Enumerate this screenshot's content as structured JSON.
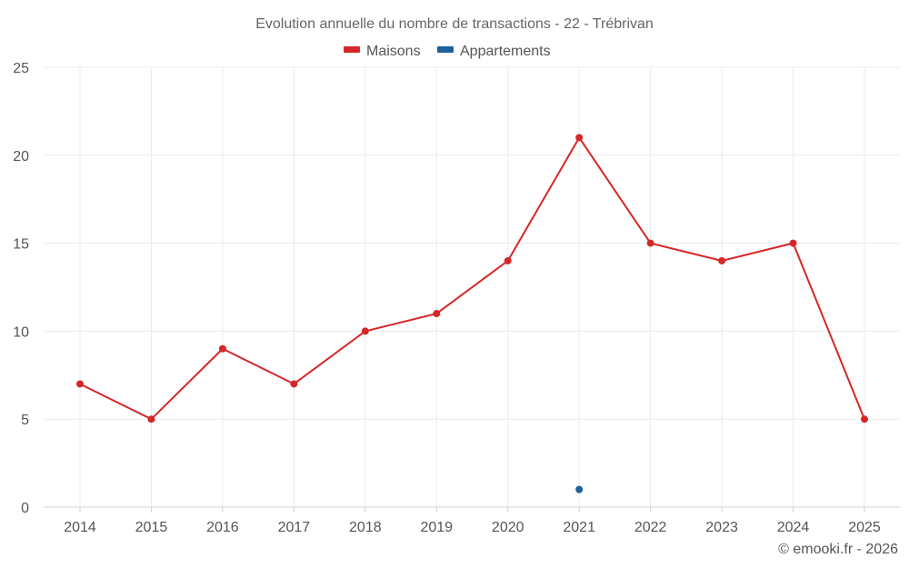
{
  "chart_data": {
    "type": "line",
    "title": "Evolution annuelle du nombre de transactions - 22 - Trébrivan",
    "categories": [
      "2014",
      "2015",
      "2016",
      "2017",
      "2018",
      "2019",
      "2020",
      "2021",
      "2022",
      "2023",
      "2024",
      "2025"
    ],
    "series": [
      {
        "name": "Maisons",
        "color": "#d62728",
        "values": [
          7,
          5,
          9,
          7,
          10,
          11,
          14,
          21,
          15,
          14,
          15,
          5
        ]
      },
      {
        "name": "Appartements",
        "color": "#1f5f9a",
        "values": [
          null,
          null,
          null,
          null,
          null,
          null,
          null,
          1,
          null,
          null,
          null,
          null
        ]
      }
    ],
    "ylim": [
      0,
      25
    ],
    "yticks": [
      "0",
      "5",
      "10",
      "15",
      "20",
      "25"
    ],
    "grid": true,
    "legend_position": "top-center",
    "xlabel": "",
    "ylabel": ""
  },
  "credit": "© emooki.fr - 2026"
}
